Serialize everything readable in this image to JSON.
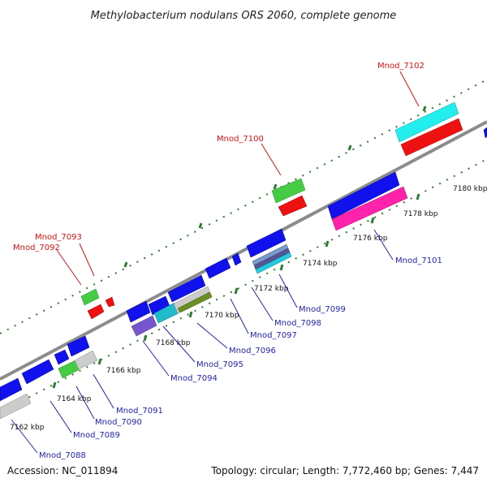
{
  "title": "Methylobacterium nodulans ORS 2060, complete genome",
  "footer": {
    "accession": "Accession: NC_011894",
    "topology": "Topology: circular; Length: 7,772,460 bp; Genes: 7,447"
  },
  "colors": {
    "backbone": "#8c8c8c",
    "tick": "#2e7d32",
    "label_forward": "#dd1111",
    "label_reverse": "#2222bb",
    "leader_forward": "#dd1111",
    "leader_reverse": "#2222bb"
  },
  "ticks": [
    "7162 kbp",
    "7164 kbp",
    "7166 kbp",
    "7168 kbp",
    "7170 kbp",
    "7172 kbp",
    "7174 kbp",
    "7176 kbp",
    "7178 kbp",
    "7180 kbp"
  ],
  "labels": {
    "forward": [
      "Mnod_7092",
      "Mnod_7093",
      "Mnod_7100",
      "Mnod_7102"
    ],
    "reverse": [
      "Mnod_7088",
      "Mnod_7089",
      "Mnod_7090",
      "Mnod_7091",
      "Mnod_7094",
      "Mnod_7095",
      "Mnod_7096",
      "Mnod_7097",
      "Mnod_7098",
      "Mnod_7099",
      "Mnod_7101"
    ]
  }
}
